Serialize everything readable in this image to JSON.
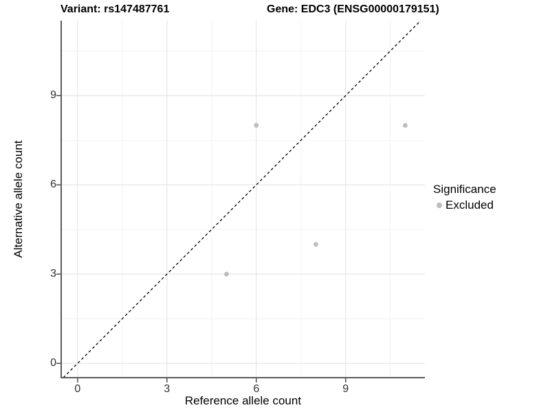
{
  "titles": {
    "left": "Variant: rs147487761",
    "right": "Gene: EDC3 (ENSG00000179151)"
  },
  "chart_data": {
    "type": "scatter",
    "xlabel": "Reference allele count",
    "ylabel": "Alternative allele count",
    "x_ticks": [
      0,
      3,
      6,
      9
    ],
    "y_ticks": [
      0,
      3,
      6,
      9
    ],
    "x_minor_ticks": [
      1.5,
      4.5,
      7.5,
      10.5
    ],
    "y_minor_ticks": [
      1.5,
      4.5,
      7.5,
      10.5
    ],
    "xlim": [
      -0.55,
      11.66
    ],
    "ylim": [
      -0.48,
      11.52
    ],
    "grid": true,
    "identity_line": {
      "type": "y=x",
      "style": "dashed",
      "color": "#000000"
    },
    "series": [
      {
        "name": "Excluded",
        "color": "#bdbdbd",
        "points": [
          [
            6,
            8
          ],
          [
            11,
            8
          ],
          [
            8,
            4
          ],
          [
            5,
            3
          ]
        ]
      }
    ],
    "legend": {
      "title": "Significance",
      "position": "right",
      "items": [
        {
          "label": "Excluded",
          "color": "#bdbdbd"
        }
      ]
    }
  },
  "colors": {
    "background": "#ffffff",
    "grid_major": "#e8e8e8",
    "grid_minor": "#f2f2f2",
    "axis_line": "#595959",
    "tick_mark": "#4d4d4d",
    "tick_text": "#303030",
    "point": "#bdbdbd"
  }
}
